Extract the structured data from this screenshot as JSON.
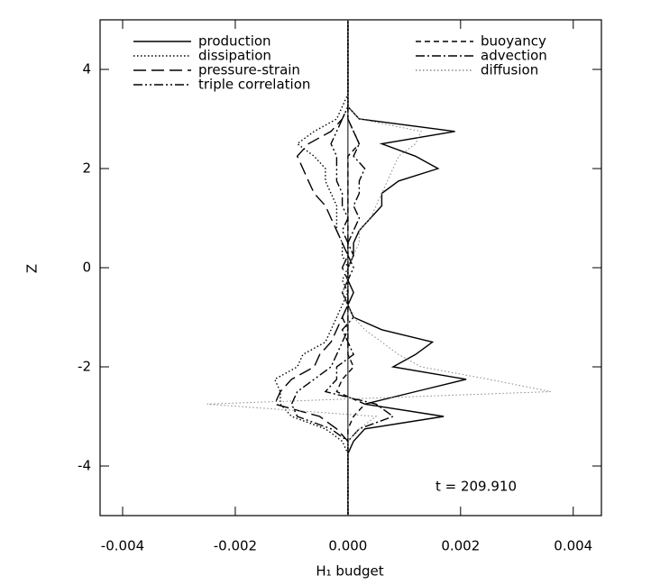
{
  "chart_data": {
    "type": "line",
    "x_label": "H₁ budget",
    "y_label": "Z",
    "annotation": "t = 209.910",
    "xlim": [
      -0.0044,
      0.0045
    ],
    "ylim": [
      -5,
      5
    ],
    "xticks": [
      -0.004,
      -0.002,
      {
        "value": 0,
        "label": "0.000"
      },
      0.002,
      0.004
    ],
    "yticks": [
      -4,
      -2,
      0,
      2,
      4
    ],
    "z": [
      -5,
      -4.75,
      -4.5,
      -4.25,
      -4,
      -3.75,
      -3.5,
      -3.25,
      -3,
      -2.75,
      -2.5,
      -2.25,
      -2,
      -1.75,
      -1.5,
      -1.25,
      -1,
      -0.75,
      -0.5,
      -0.25,
      0,
      0.25,
      0.5,
      0.75,
      1,
      1.25,
      1.5,
      1.75,
      2,
      2.25,
      2.5,
      2.75,
      3,
      3.25,
      3.5,
      3.75,
      4,
      4.25,
      4.5,
      4.75,
      5
    ],
    "series": [
      {
        "name": "production",
        "color": "#000000",
        "style": "solid",
        "values": [
          0,
          0,
          0,
          0,
          0,
          0,
          0.0001,
          0.0003,
          0.0017,
          0.0003,
          0.0012,
          0.0021,
          0.0008,
          0.0012,
          0.0015,
          0.0006,
          0.0001,
          0,
          0.0001,
          0,
          0,
          0.0001,
          0.0001,
          0.0002,
          0.0004,
          0.0006,
          0.0006,
          0.0009,
          0.0016,
          0.0012,
          0.0006,
          0.0019,
          0.0002,
          0,
          0,
          0,
          0,
          0,
          0,
          0,
          0
        ]
      },
      {
        "name": "dissipation",
        "color": "#000000",
        "style": "dotted",
        "values": [
          0,
          0,
          0,
          0,
          0,
          0,
          -0.0001,
          -0.0004,
          -0.001,
          -0.0012,
          -0.0012,
          -0.0013,
          -0.0009,
          -0.0008,
          -0.0004,
          -0.0003,
          -0.0002,
          -0.0001,
          0,
          -0.0001,
          0,
          -0.0001,
          -0.0001,
          -0.0002,
          -0.0002,
          -0.0002,
          -0.0003,
          -0.0004,
          -0.0004,
          -0.0006,
          -0.0009,
          -0.0006,
          -0.0002,
          -0.0001,
          0,
          0,
          0,
          0,
          0,
          0,
          0
        ]
      },
      {
        "name": "pressure-strain",
        "color": "#000000",
        "style": "longdash",
        "values": [
          0,
          0,
          0,
          0,
          0,
          0,
          0,
          -0.0002,
          -0.0005,
          -0.0013,
          -0.0012,
          -0.001,
          -0.0006,
          -0.0005,
          -0.0003,
          -0.0002,
          -0.0001,
          0,
          -0.0001,
          0,
          -0.0001,
          0,
          -0.0001,
          -0.0002,
          -0.0003,
          -0.0004,
          -0.0006,
          -0.0007,
          -0.0008,
          -0.0009,
          -0.0007,
          -0.0003,
          -0.0001,
          0,
          0,
          0,
          0,
          0,
          0,
          0,
          0
        ]
      },
      {
        "name": "triple correlation",
        "color": "#000000",
        "style": "dashdotdot",
        "values": [
          0,
          0,
          0,
          0,
          0,
          0,
          0,
          -0.0003,
          -0.0009,
          -0.001,
          -0.0009,
          -0.0006,
          -0.0003,
          -0.0002,
          -0.0001,
          0,
          -0.0001,
          0,
          0,
          0,
          0.0001,
          0,
          0,
          -0.0001,
          0,
          -0.0001,
          -0.0001,
          -0.0002,
          -0.0002,
          -0.0002,
          -0.0003,
          -0.0002,
          -0.0001,
          0,
          0,
          0,
          0,
          0,
          0,
          0,
          0
        ]
      },
      {
        "name": "buoyancy",
        "color": "#000000",
        "style": "dashed",
        "values": [
          0,
          0,
          0,
          0,
          0,
          0,
          0,
          0,
          0.0001,
          0.0003,
          -0.0002,
          -0.0001,
          0.0001,
          0,
          0,
          0,
          0,
          0,
          0,
          0,
          0,
          0,
          0,
          0,
          0,
          0,
          0,
          0,
          0,
          0,
          0.0002,
          0.0001,
          0,
          0,
          0,
          0,
          0,
          0,
          0,
          0,
          0
        ]
      },
      {
        "name": "advection",
        "color": "#000000",
        "style": "dashdot",
        "values": [
          0,
          0,
          0,
          0,
          0,
          0,
          0,
          0.0002,
          0.0008,
          0.0005,
          -0.0004,
          -0.0002,
          -0.0002,
          0.0001,
          0,
          -0.0001,
          0.0001,
          0,
          -0.0001,
          0,
          0,
          0.0001,
          0,
          0.0001,
          0.0002,
          0.0001,
          0.0002,
          0.0002,
          0.0003,
          0.0001,
          0.0002,
          0.0001,
          0,
          0,
          0,
          0,
          0,
          0,
          0,
          0,
          0
        ]
      },
      {
        "name": "diffusion",
        "color": "#888888",
        "style": "dotted",
        "values": [
          0,
          0,
          0,
          0,
          0,
          0,
          0,
          0.0002,
          0.0005,
          -0.0025,
          0.0036,
          0.0025,
          0.0013,
          0.0009,
          0.0006,
          0.0003,
          0.0001,
          0,
          -0.0001,
          0,
          0,
          0.0001,
          0.0002,
          0.0002,
          0.0004,
          0.0005,
          0.0006,
          0.0007,
          0.0008,
          0.0009,
          0.0012,
          0.0013,
          0.0002,
          0,
          0,
          0,
          0,
          0,
          0,
          0,
          0
        ]
      }
    ]
  }
}
